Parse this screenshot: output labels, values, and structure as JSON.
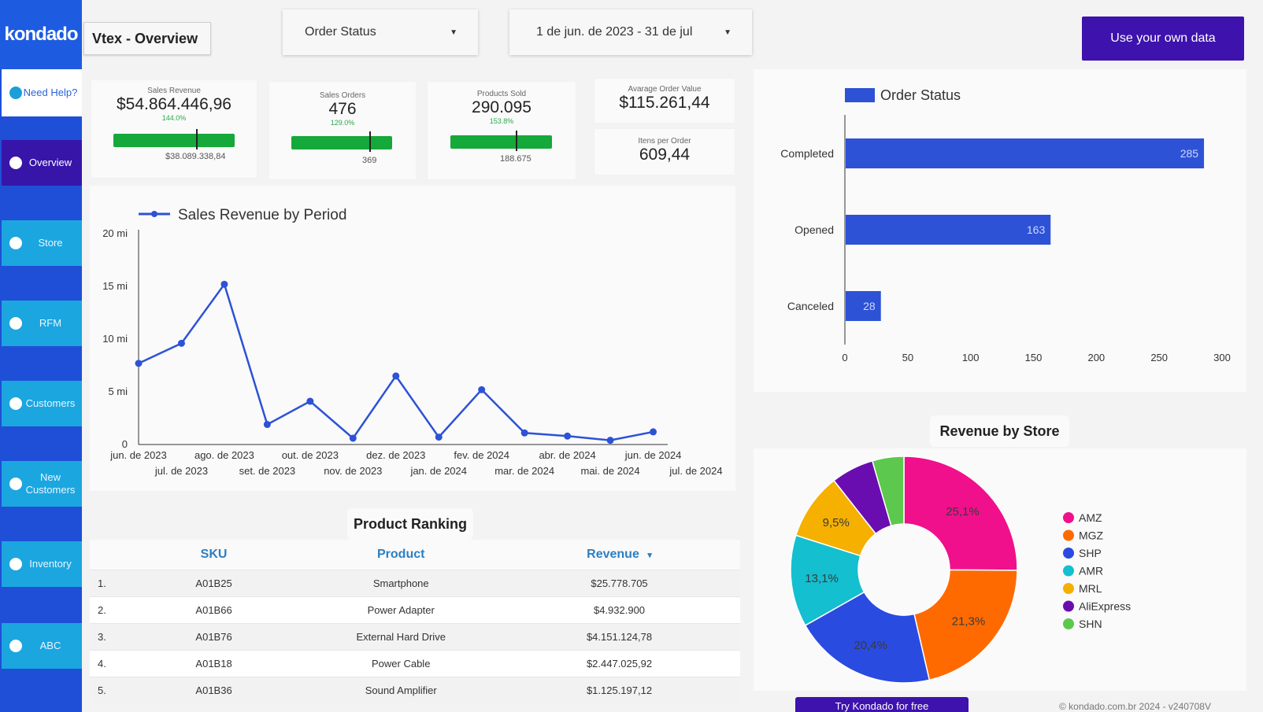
{
  "brand": {
    "logo": "kondado"
  },
  "nav": {
    "help": "Need Help?",
    "items": [
      {
        "label": "Overview",
        "state": "active"
      },
      {
        "label": "Store",
        "state": "normal"
      },
      {
        "label": "RFM",
        "state": "normal"
      },
      {
        "label": "Customers",
        "state": "normal"
      },
      {
        "label": "New Customers",
        "state": "normal"
      },
      {
        "label": "Inventory",
        "state": "normal"
      },
      {
        "label": "ABC",
        "state": "normal"
      }
    ]
  },
  "header": {
    "title": "Vtex - Overview",
    "order_status_filter": "Order Status",
    "date_range": "1 de jun. de 2023 - 31 de jul",
    "cta": "Use your own data"
  },
  "kpis": {
    "sales_revenue": {
      "label": "Sales Revenue",
      "value": "$54.864.446,96",
      "pct": "144.0%",
      "target": "$38.089.338,84"
    },
    "sales_orders": {
      "label": "Sales Orders",
      "value": "476",
      "pct": "129.0%",
      "target": "369"
    },
    "products_sold": {
      "label": "Products Sold",
      "value": "290.095",
      "pct": "153.8%",
      "target": "188.675"
    },
    "avg_order_value": {
      "label": "Avarage Order Value",
      "value": "$115.261,44"
    },
    "items_per_order": {
      "label": "Itens per Order",
      "value": "609,44"
    }
  },
  "chart_data": [
    {
      "type": "line",
      "title": "",
      "legend": "Sales Revenue by Period",
      "x": [
        "jun. de 2023",
        "jul. de 2023",
        "ago. de 2023",
        "set. de 2023",
        "out. de 2023",
        "nov. de 2023",
        "dez. de 2023",
        "jan. de 2024",
        "fev. de 2024",
        "mar. de 2024",
        "abr. de 2024",
        "mai. de 2024",
        "jun. de 2024"
      ],
      "x_tick_labels": [
        "jun. de 2023",
        "jul. de 2023",
        "ago. de 2023",
        "set. de 2023",
        "out. de 2023",
        "nov. de 2023",
        "dez. de 2023",
        "jan. de 2024",
        "fev. de 2024",
        "mar. de 2024",
        "abr. de 2024",
        "mai. de 2024",
        "jun. de 2024",
        "jul. de 2024"
      ],
      "series": [
        {
          "name": "Sales Revenue by Period",
          "values": [
            7.7,
            9.6,
            15.2,
            1.9,
            4.1,
            0.6,
            6.5,
            0.7,
            5.2,
            1.1,
            0.8,
            0.4,
            1.2
          ]
        }
      ],
      "y_ticks": [
        "0",
        "5 mi",
        "10 mi",
        "15 mi",
        "20 mi"
      ],
      "ylim": [
        0,
        20
      ],
      "color": "#2d52d6"
    },
    {
      "type": "bar",
      "orientation": "horizontal",
      "legend": "Order Status",
      "categories": [
        "Completed",
        "Opened",
        "Canceled"
      ],
      "values": [
        285,
        163,
        28
      ],
      "x_ticks": [
        "0",
        "50",
        "100",
        "150",
        "200",
        "250",
        "300"
      ],
      "xlim": [
        0,
        300
      ],
      "color": "#2d52d6"
    },
    {
      "type": "pie",
      "title": "Revenue by Store",
      "donut": true,
      "categories": [
        "AMZ",
        "MGZ",
        "SHP",
        "AMR",
        "MRL",
        "AliExpress",
        "SHN"
      ],
      "values": [
        25.1,
        21.3,
        20.4,
        13.1,
        9.5,
        6.1,
        4.5
      ],
      "labels": [
        "25,1%",
        "21,3%",
        "20,4%",
        "13,1%",
        "9,5%",
        "",
        ""
      ],
      "colors": [
        "#f0108c",
        "#ff6a00",
        "#2a4be0",
        "#14bfcf",
        "#f5b000",
        "#6a0db0",
        "#5cc84e"
      ]
    }
  ],
  "ranking": {
    "title": "Product Ranking",
    "columns": [
      "SKU",
      "Product",
      "Revenue"
    ],
    "sort_indicator": "▾",
    "rows": [
      {
        "rank": "1.",
        "sku": "A01B25",
        "product": "Smartphone",
        "revenue": "$25.778.705"
      },
      {
        "rank": "2.",
        "sku": "A01B66",
        "product": "Power Adapter",
        "revenue": "$4.932.900"
      },
      {
        "rank": "3.",
        "sku": "A01B76",
        "product": "External Hard Drive",
        "revenue": "$4.151.124,78"
      },
      {
        "rank": "4.",
        "sku": "A01B18",
        "product": "Power Cable",
        "revenue": "$2.447.025,92"
      },
      {
        "rank": "5.",
        "sku": "A01B36",
        "product": "Sound Amplifier",
        "revenue": "$1.125.197,12"
      }
    ]
  },
  "footer": {
    "try": "Try Kondado for free",
    "copyright": "© kondado.com.br 2024 - v240708V"
  }
}
